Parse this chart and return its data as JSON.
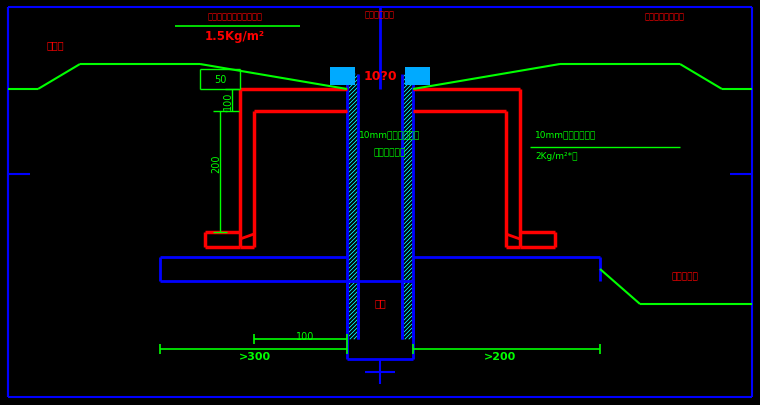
{
  "bg_color": "#000000",
  "blue": "#0000FF",
  "cyan": "#00FFFF",
  "red": "#FF0000",
  "green": "#00FF00",
  "figsize": [
    7.6,
    4.06
  ],
  "dpi": 100,
  "annotations": {
    "fangshui_ceng": "防水层",
    "shuini_label": "水泥基渗透结晶防水材料",
    "shuini_value": "1.5Kg/m²",
    "zhishui_label": "水膨胀止水棱",
    "zhishui_value": "10?0",
    "polymer_left": "10mm聚复合防水泥",
    "polymer_left2": "防水砂浆找平",
    "polymer_right": "10mm聚复合防水泥",
    "polymer_right2": "2Kg/m²*遍",
    "fangshui_right": "防水混凝土保护层",
    "ganggu": "钢管",
    "hntc_right": "混凝土垫层",
    "dim_50": "50",
    "dim_100_left": "100",
    "dim_200": "200",
    "dim_100_bot": "100",
    "dim_300": ">300",
    "dim_200_bot": ">200"
  }
}
